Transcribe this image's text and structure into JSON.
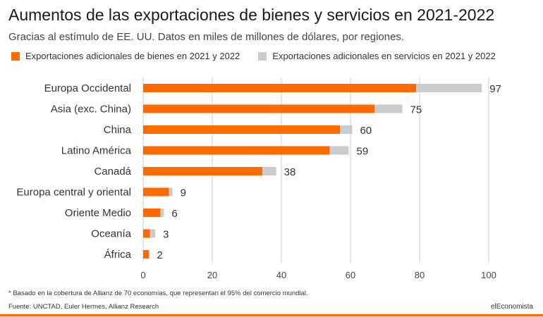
{
  "chart_data": {
    "type": "bar",
    "orientation": "horizontal",
    "stacked": true,
    "title": "Aumentos de las exportaciones de bienes y servicios en 2021-2022",
    "subtitle": "Gracias al estímulo de EE. UU. Datos en miles de millones de dólares, por regiones.",
    "categories": [
      "Europa Occidental",
      "Asia (exc. China)",
      "China",
      "Latino América",
      "Canadá",
      "Europa central y oriental",
      "Oriente Medio",
      "Oceanía",
      "África"
    ],
    "series": [
      {
        "name": "Exportaciones adicionales de bienes en 2021 y 2022",
        "color": "#ff6a00",
        "values": [
          79,
          67,
          57,
          54,
          34.5,
          7.5,
          5,
          2,
          1.7
        ]
      },
      {
        "name": "Exportaciones adicionales en servicios en 2021 y 2022",
        "color": "#cccccc",
        "values": [
          19,
          8,
          3.5,
          5.5,
          4,
          1,
          1,
          1.5,
          0
        ]
      }
    ],
    "totals": [
      "97",
      "75",
      "60",
      "59",
      "38",
      "9",
      "6",
      "3",
      "2"
    ],
    "xlim": [
      0,
      100
    ],
    "xticks": [
      "0",
      "20",
      "40",
      "60",
      "80",
      "100"
    ]
  },
  "footer": {
    "note": "* Basado en la cobertura de Allianz de 70 economías, que representan el 95% del comercio mundial.",
    "source": "Fuente: UNCTAD, Euler Hermes, Allianz Research",
    "brand": "elEconomista"
  },
  "colors": {
    "accent": "#ff6a00",
    "services": "#cccccc",
    "grid": "#cccccc"
  }
}
